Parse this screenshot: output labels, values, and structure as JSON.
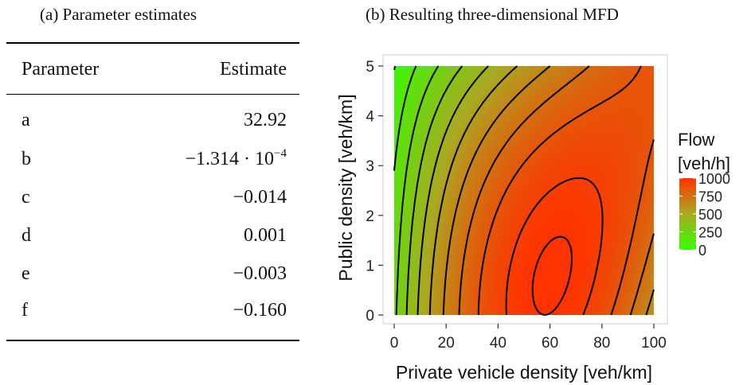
{
  "figure": {
    "caption_a": "(a) Parameter estimates",
    "caption_b": "(b) Resulting three-dimensional MFD"
  },
  "table": {
    "headers": [
      "Parameter",
      "Estimate"
    ],
    "rows": [
      {
        "param": "a",
        "estimate": "32.92"
      },
      {
        "param": "b",
        "estimate_base": "−1.314 · 10",
        "estimate_exp": "−4"
      },
      {
        "param": "c",
        "estimate": "−0.014"
      },
      {
        "param": "d",
        "estimate": "0.001"
      },
      {
        "param": "e",
        "estimate": "−0.003"
      },
      {
        "param": "f",
        "estimate": "−0.160"
      }
    ]
  },
  "chart_data": {
    "type": "heatmap",
    "xlabel": "Private vehicle density [veh/km]",
    "ylabel": "Public density [veh/km]",
    "x_ticks": [
      "0",
      "20",
      "40",
      "60",
      "80",
      "100"
    ],
    "y_ticks": [
      "0",
      "1",
      "2",
      "3",
      "4",
      "5"
    ],
    "xlim": [
      0,
      100
    ],
    "ylim": [
      0,
      5
    ],
    "legend": {
      "title_line1": "Flow",
      "title_line2": "[veh/h]",
      "ticks": [
        "1000",
        "750",
        "500",
        "250",
        "0"
      ],
      "range": [
        0,
        1000
      ],
      "placement": "right",
      "colors": [
        "#33ff00",
        "#aaaa22",
        "#ff3300"
      ]
    },
    "contour_levels": [
      50,
      150,
      250,
      350,
      450,
      550,
      650,
      750,
      850,
      950,
      1000
    ]
  }
}
